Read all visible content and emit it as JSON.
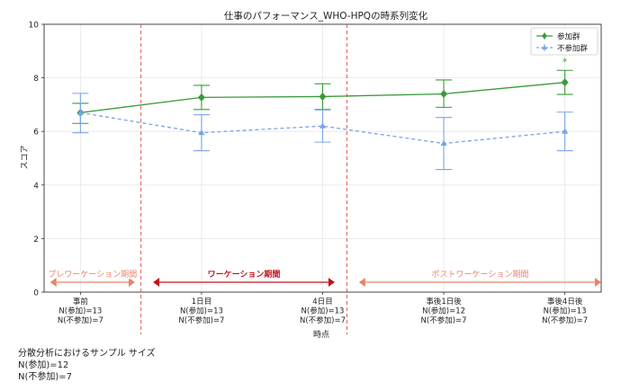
{
  "chart_data": {
    "type": "line",
    "title": "仕事のパフォーマンス_WHO-HPQの時系列変化",
    "xlabel": "時点",
    "ylabel": "スコア",
    "ylim": [
      0,
      10
    ],
    "yticks": [
      0,
      2,
      4,
      6,
      8,
      10
    ],
    "categories": [
      "事前\nN(参加)=13\nN(不参加)=7",
      "1日目\nN(参加)=13\nN(不参加)=7",
      "4日目\nN(参加)=13\nN(不参加)=7",
      "事後1日後\nN(参加)=12\nN(不参加)=7",
      "事後4日後\nN(参加)=13\nN(不参加)=7"
    ],
    "series": [
      {
        "name": "参加群",
        "color": "#3a9a3a",
        "values": [
          6.7,
          7.27,
          7.3,
          7.4,
          7.83
        ],
        "err_low": [
          6.3,
          6.82,
          6.82,
          6.9,
          7.38
        ],
        "err_high": [
          7.05,
          7.72,
          7.78,
          7.92,
          8.28
        ],
        "linestyle": "solid",
        "marker": "diamond"
      },
      {
        "name": "不参加群",
        "color": "#7aa3e5",
        "values": [
          6.7,
          5.95,
          6.2,
          5.55,
          6.0
        ],
        "err_low": [
          5.95,
          5.28,
          5.6,
          4.58,
          5.28
        ],
        "err_high": [
          7.42,
          6.62,
          6.8,
          6.52,
          6.72
        ],
        "linestyle": "dashed",
        "marker": "triangle"
      }
    ],
    "significance_marker": {
      "text": "*",
      "category_index": 4,
      "value": 8.6,
      "color": "#3a9a3a"
    },
    "phase_dividers": [
      0.5,
      2.2
    ],
    "phases": [
      {
        "label": "プレワーケーション期間",
        "from": -0.25,
        "to": 0.45,
        "color": "#e8836a"
      },
      {
        "label": "ワーケーション期間",
        "from": 0.6,
        "to": 2.1,
        "color": "#c0131b"
      },
      {
        "label": "ポストワーケーション期間",
        "from": 2.3,
        "to": 4.3,
        "color": "#e8836a"
      }
    ],
    "legend_position": "top-right",
    "grid": true,
    "divider_color": "#e04848"
  },
  "note": {
    "lines": [
      "分散分析におけるサンプル サイズ",
      "N(参加)=12",
      "N(不参加)=7"
    ]
  }
}
